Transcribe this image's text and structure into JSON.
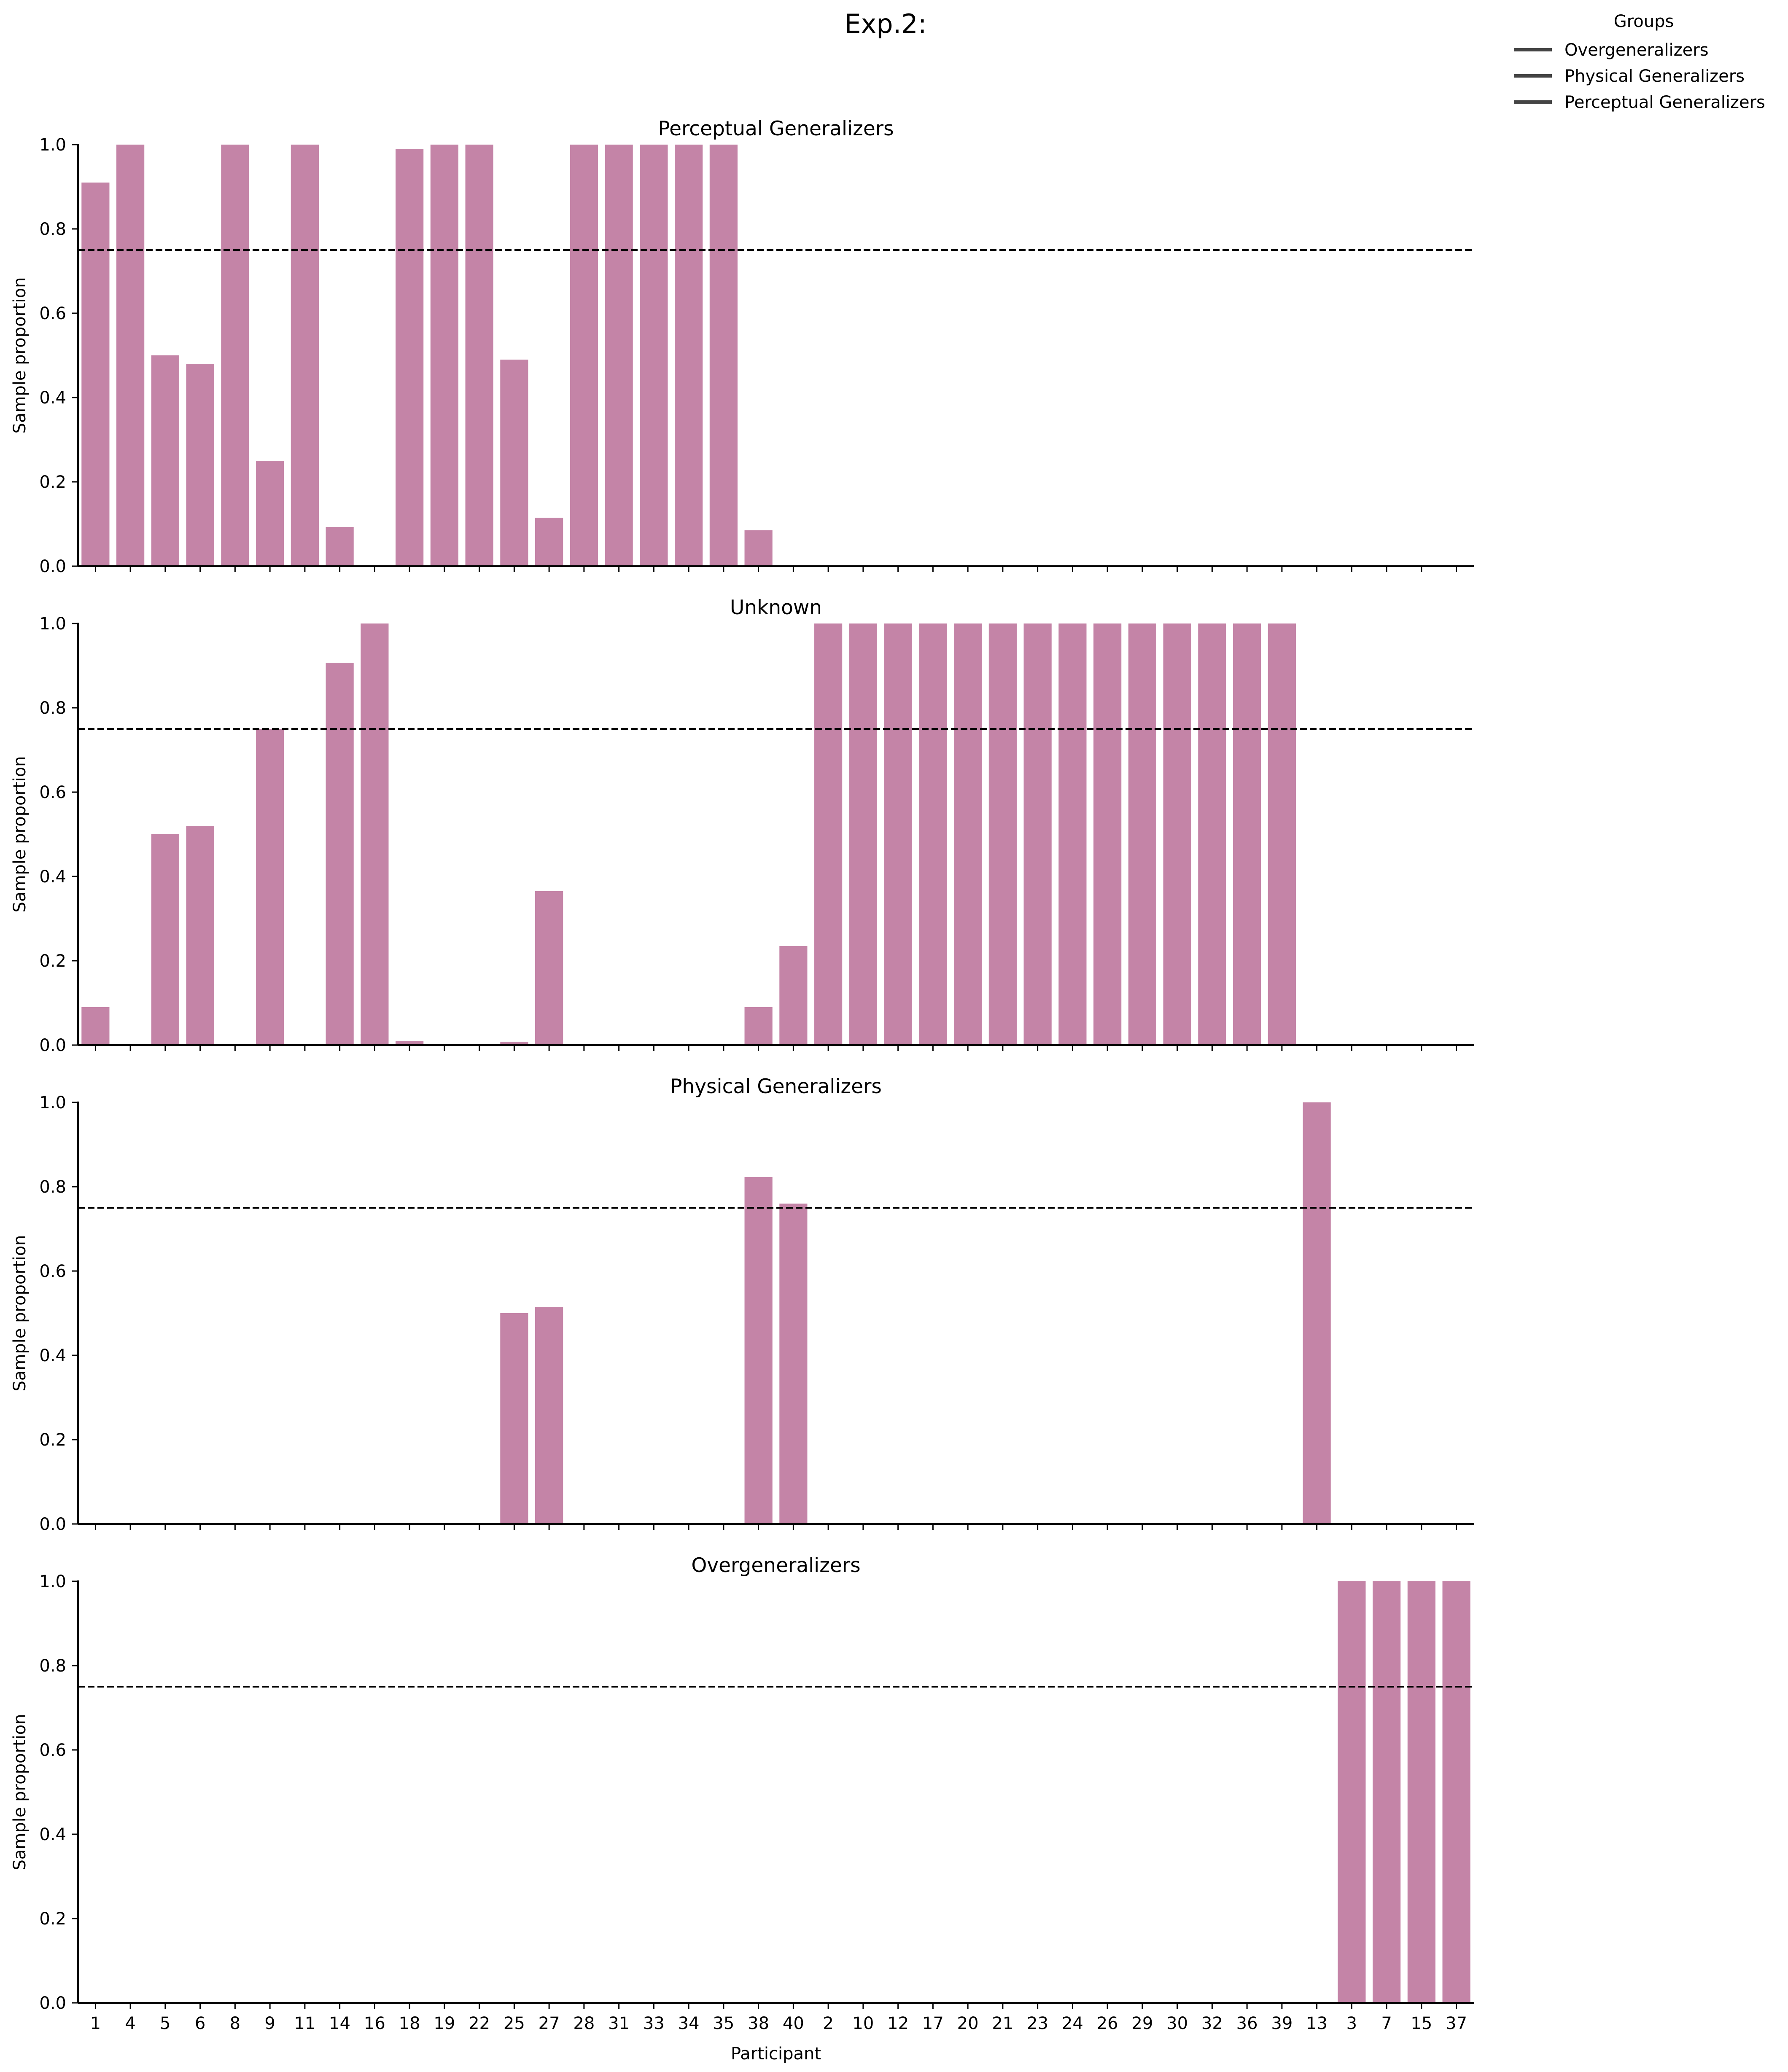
{
  "chart_data": {
    "type": "bar",
    "title": "Exp.2:",
    "xlabel": "Participant",
    "ylabel": "Sample proportion",
    "ylim": [
      0,
      1
    ],
    "yticks": [
      0.0,
      0.2,
      0.4,
      0.6,
      0.8,
      1.0
    ],
    "ytick_labels": [
      "0.0",
      "0.2",
      "0.4",
      "0.6",
      "0.8",
      "1.0"
    ],
    "threshold": 0.75,
    "bar_color": "#c484a7",
    "categories": [
      "1",
      "4",
      "5",
      "6",
      "8",
      "9",
      "11",
      "14",
      "16",
      "18",
      "19",
      "22",
      "25",
      "27",
      "28",
      "31",
      "33",
      "34",
      "35",
      "38",
      "40",
      "2",
      "10",
      "12",
      "17",
      "20",
      "21",
      "23",
      "24",
      "26",
      "29",
      "30",
      "32",
      "36",
      "39",
      "13",
      "3",
      "7",
      "15",
      "37"
    ],
    "legend": {
      "title": "Groups",
      "placement": "top-right",
      "entries": [
        "Overgeneralizers",
        "Physical Generalizers",
        "Perceptual Generalizers"
      ]
    },
    "panels": [
      {
        "title": "Perceptual Generalizers",
        "values": [
          0.91,
          1.0,
          0.5,
          0.48,
          1.0,
          0.25,
          1.0,
          0.093,
          0,
          0.99,
          1.0,
          1.0,
          0.49,
          0.115,
          1.0,
          1.0,
          1.0,
          1.0,
          1.0,
          0.085,
          0,
          0,
          0,
          0,
          0,
          0,
          0,
          0,
          0,
          0,
          0,
          0,
          0,
          0,
          0,
          0,
          0,
          0,
          0,
          0
        ]
      },
      {
        "title": "Unknown",
        "values": [
          0.09,
          0,
          0.5,
          0.52,
          0,
          0.75,
          0,
          0.907,
          1.0,
          0.01,
          0,
          0,
          0.008,
          0.365,
          0,
          0,
          0,
          0,
          0,
          0.09,
          0.235,
          1.0,
          1.0,
          1.0,
          1.0,
          1.0,
          1.0,
          1.0,
          1.0,
          1.0,
          1.0,
          1.0,
          1.0,
          1.0,
          1.0,
          0,
          0,
          0,
          0,
          0
        ]
      },
      {
        "title": "Physical Generalizers",
        "values": [
          0,
          0,
          0,
          0,
          0,
          0,
          0,
          0,
          0,
          0,
          0,
          0,
          0.5,
          0.515,
          0,
          0,
          0,
          0,
          0,
          0.823,
          0.76,
          0,
          0,
          0,
          0,
          0,
          0,
          0,
          0,
          0,
          0,
          0,
          0,
          0,
          0,
          1.0,
          0,
          0,
          0,
          0
        ]
      },
      {
        "title": "Overgeneralizers",
        "values": [
          0,
          0,
          0,
          0,
          0,
          0,
          0,
          0,
          0,
          0,
          0,
          0,
          0,
          0,
          0,
          0,
          0,
          0,
          0,
          0,
          0,
          0,
          0,
          0,
          0,
          0,
          0,
          0,
          0,
          0,
          0,
          0,
          0,
          0,
          0,
          0,
          1.0,
          1.0,
          1.0,
          1.0
        ]
      }
    ]
  }
}
